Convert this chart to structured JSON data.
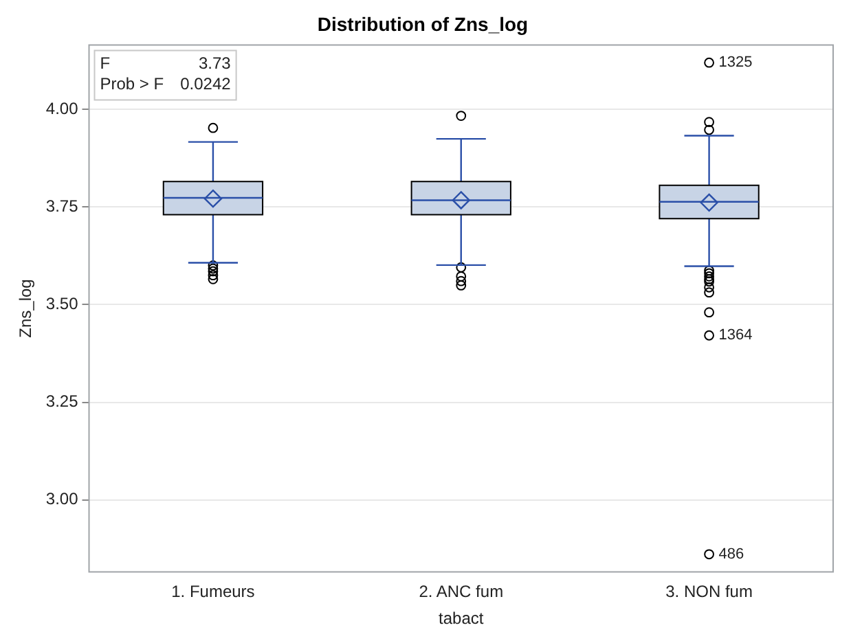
{
  "chart_data": {
    "type": "box",
    "title": "Distribution of Zns_log",
    "xlabel": "tabact",
    "ylabel": "Zns_log",
    "categories": [
      "1. Fumeurs",
      "2. ANC fum",
      "3. NON fum"
    ],
    "color": "#c8d4e6",
    "boxes": [
      {
        "low": 3.607,
        "q1": 3.73,
        "median": 3.773,
        "q3": 3.815,
        "high": 3.916,
        "mean": 3.771
      },
      {
        "low": 3.601,
        "q1": 3.73,
        "median": 3.767,
        "q3": 3.815,
        "high": 3.924,
        "mean": 3.767
      },
      {
        "low": 3.598,
        "q1": 3.72,
        "median": 3.763,
        "q3": 3.805,
        "high": 3.932,
        "mean": 3.761
      }
    ],
    "series": [
      {
        "type": "scatter",
        "color": "#000000",
        "x": [
          "1. Fumeurs",
          "1. Fumeurs",
          "1. Fumeurs",
          "1. Fumeurs",
          "1. Fumeurs",
          "1. Fumeurs",
          "2. ANC fum",
          "2. ANC fum",
          "2. ANC fum",
          "2. ANC fum",
          "2. ANC fum",
          "3. NON fum",
          "3. NON fum",
          "3. NON fum",
          "3. NON fum",
          "3. NON fum",
          "3. NON fum",
          "3. NON fum",
          "3. NON fum",
          "3. NON fum",
          "3. NON fum",
          "3. NON fum",
          "3. NON fum",
          "3. NON fum"
        ],
        "values": [
          3.952,
          3.6,
          3.592,
          3.585,
          3.575,
          3.565,
          3.983,
          3.595,
          3.572,
          3.56,
          3.549,
          4.119,
          3.967,
          3.947,
          3.587,
          3.58,
          3.572,
          3.565,
          3.559,
          3.544,
          3.531,
          3.48,
          3.421,
          2.861
        ]
      }
    ],
    "ylim": [
      2.816,
      4.164
    ],
    "yticks": [
      {
        "value": 3,
        "label": "3.00"
      },
      {
        "value": 3.25,
        "label": "3.25"
      },
      {
        "value": 3.5,
        "label": "3.50"
      },
      {
        "value": 3.75,
        "label": "3.75"
      },
      {
        "value": 4,
        "label": "4.00"
      }
    ],
    "grid": "y",
    "legend": false,
    "marker": "circle",
    "annotations": [
      "F 3.73",
      "Prob > F 0.0242",
      {
        "text": "1325",
        "x": "3. NON fum",
        "y": 4.119
      },
      {
        "text": "1364",
        "x": "3. NON fum",
        "y": 3.421
      },
      {
        "text": "486",
        "x": "3. NON fum",
        "y": 2.861
      }
    ]
  }
}
